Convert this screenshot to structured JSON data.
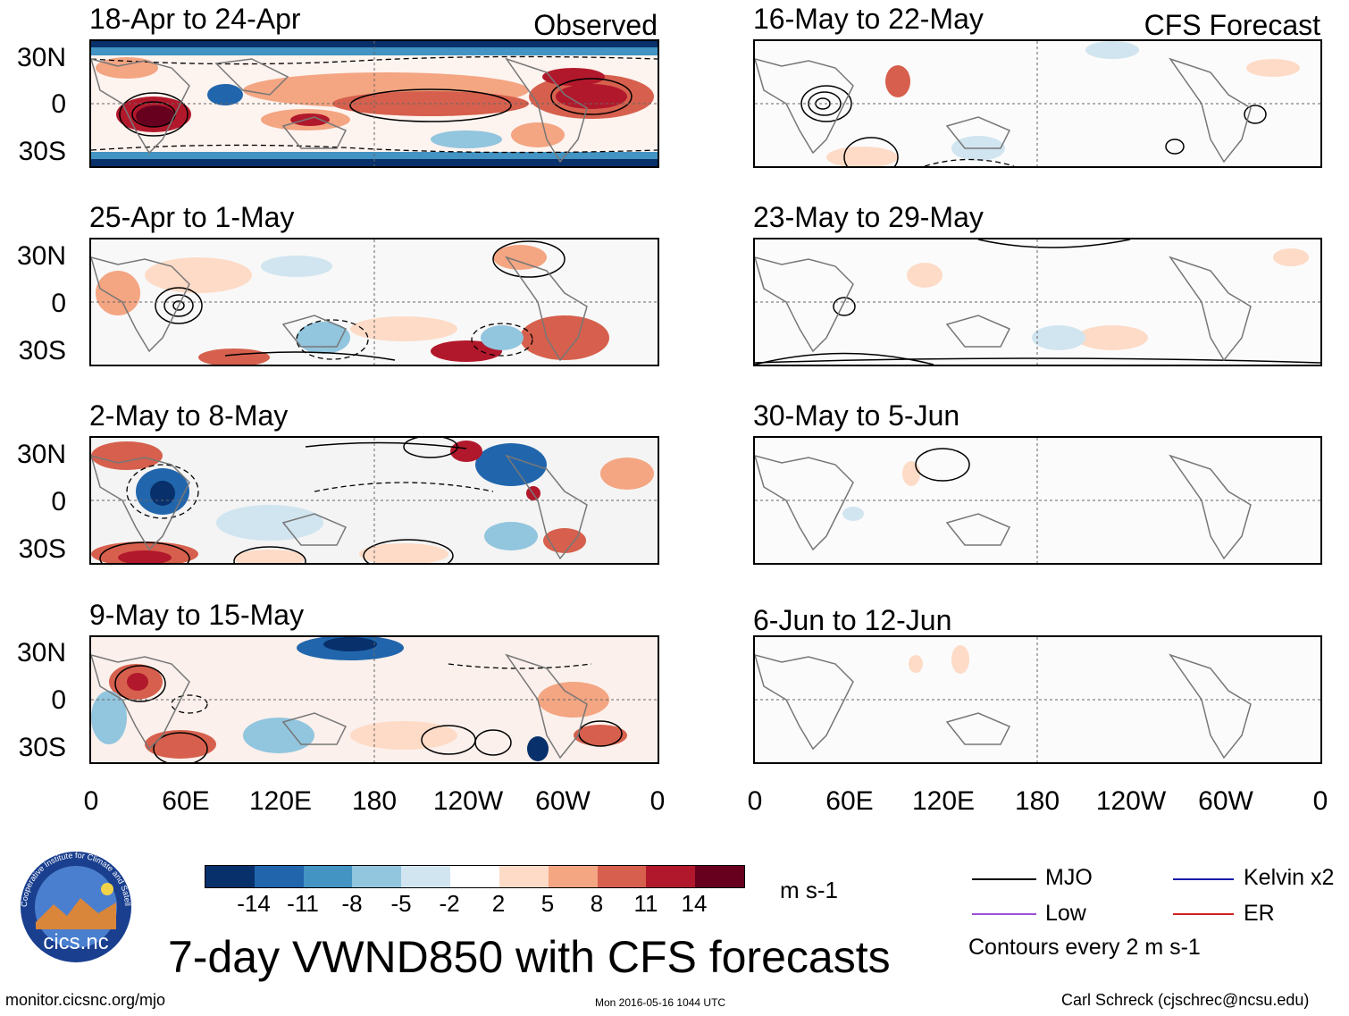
{
  "headers": {
    "observed": "Observed",
    "forecast": "CFS Forecast"
  },
  "observed_panels": [
    {
      "title": "18-Apr to 24-Apr"
    },
    {
      "title": "25-Apr to 1-May"
    },
    {
      "title": "2-May to 8-May"
    },
    {
      "title": "9-May to 15-May"
    }
  ],
  "forecast_panels": [
    {
      "title": "16-May to 22-May"
    },
    {
      "title": "23-May to 29-May"
    },
    {
      "title": "30-May to 5-Jun"
    },
    {
      "title": "6-Jun to 12-Jun"
    }
  ],
  "lat_labels": [
    "30N",
    "0",
    "30S"
  ],
  "lon_labels": [
    "0",
    "60E",
    "120E",
    "180",
    "120W",
    "60W",
    "0"
  ],
  "colorbar": {
    "colors": [
      "#08306b",
      "#2166ac",
      "#4393c3",
      "#92c5de",
      "#d1e5f0",
      "#ffffff",
      "#fddbc7",
      "#f4a582",
      "#d6604d",
      "#b2182b",
      "#67001f"
    ],
    "labels": [
      "-14",
      "-11",
      "-8",
      "-5",
      "-2",
      "2",
      "5",
      "8",
      "11",
      "14"
    ],
    "units": "m s-1"
  },
  "legend": {
    "items": [
      {
        "label": "MJO",
        "color": "#000000"
      },
      {
        "label": "Kelvin x2",
        "color": "#1a1aaa"
      },
      {
        "label": "Low",
        "color": "#9b4fd6"
      },
      {
        "label": "ER",
        "color": "#d22020"
      }
    ],
    "contour_note": "Contours every 2 m s-1"
  },
  "main_title": "7-day VWND850 with CFS forecasts",
  "logo_text": "cics.nc",
  "logo_ring_text": "Cooperative Institute for Climate and Satellites",
  "footer": {
    "url": "monitor.cicsnc.org/mjo",
    "timestamp": "Mon 2016-05-16 1044 UTC",
    "author": "Carl Schreck (cjschrec@ncsu.edu)"
  }
}
